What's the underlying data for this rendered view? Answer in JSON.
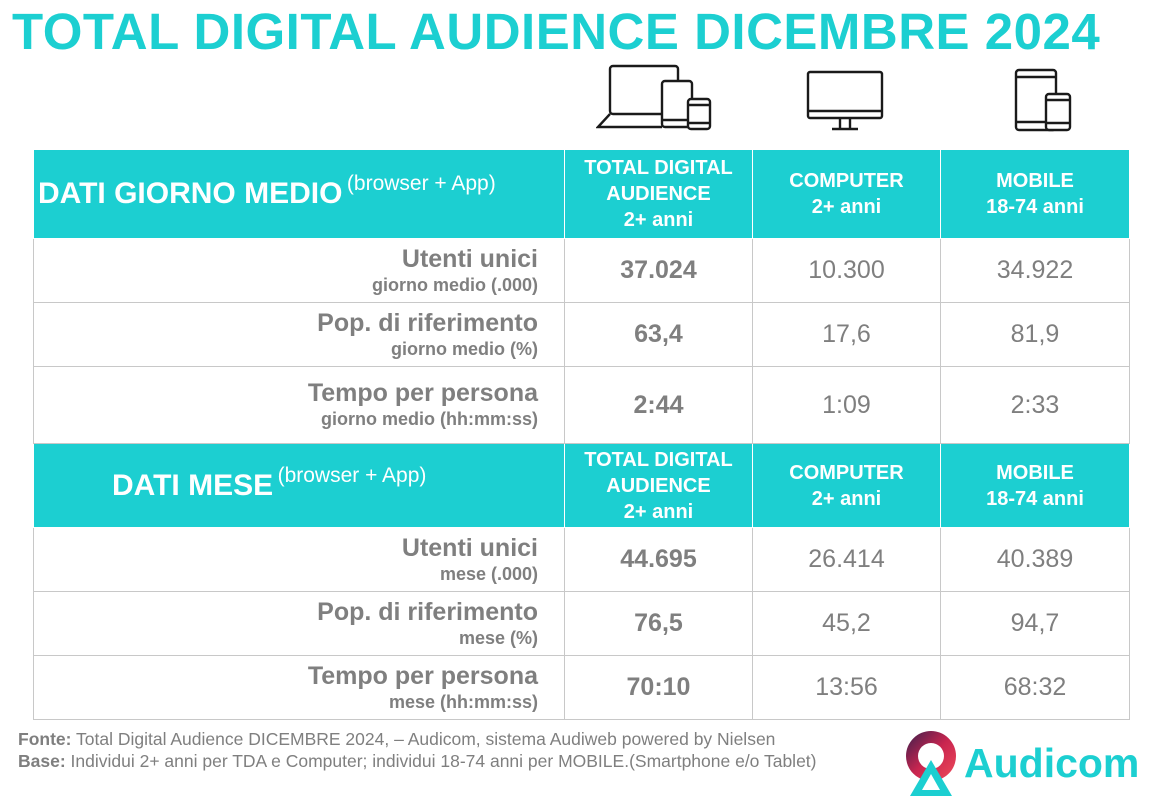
{
  "title": "TOTAL DIGITAL AUDIENCE DICEMBRE 2024",
  "icons": {
    "all_devices": "devices-icon",
    "computer": "desktop-monitor-icon",
    "mobile": "tablet-smartphone-icon"
  },
  "colors": {
    "accent": "#1ccfd1",
    "text": "#7f7f7f",
    "border": "#c8c8c8"
  },
  "columns": {
    "total": [
      "TOTAL DIGITAL",
      "AUDIENCE",
      "2+ anni"
    ],
    "computer": [
      "COMPUTER",
      "2+ anni"
    ],
    "mobile": [
      "MOBILE",
      "18-74 anni"
    ]
  },
  "daily": {
    "title": "DATI GIORNO MEDIO",
    "subtitle": "(browser + App)",
    "rows": [
      {
        "label": "Utenti unici",
        "sublabel": "giorno medio (.000)",
        "total": "37.024",
        "computer": "10.300",
        "mobile": "34.922"
      },
      {
        "label": "Pop. di riferimento",
        "sublabel": "giorno medio (%)",
        "total": "63,4",
        "computer": "17,6",
        "mobile": "81,9"
      },
      {
        "label": "Tempo per persona",
        "sublabel": "giorno medio (hh:mm:ss)",
        "total": "2:44",
        "computer": "1:09",
        "mobile": "2:33"
      }
    ]
  },
  "monthly": {
    "title": "DATI MESE",
    "subtitle": "(browser + App)",
    "rows": [
      {
        "label": "Utenti unici",
        "sublabel": "mese (.000)",
        "total": "44.695",
        "computer": "26.414",
        "mobile": "40.389"
      },
      {
        "label": "Pop. di riferimento",
        "sublabel": "mese (%)",
        "total": "76,5",
        "computer": "45,2",
        "mobile": "94,7"
      },
      {
        "label": "Tempo per persona",
        "sublabel": "mese (hh:mm:ss)",
        "total": "70:10",
        "computer": "13:56",
        "mobile": "68:32"
      }
    ]
  },
  "footer": {
    "source_label": "Fonte:",
    "source_text": " Total Digital Audience DICEMBRE 2024, – Audicom, sistema Audiweb powered by Nielsen",
    "base_label": "Base:",
    "base_text": "  Individui 2+ anni per TDA e Computer; individui 18-74 anni per MOBILE.(Smartphone e/o Tablet)"
  },
  "logo": {
    "name": "Audicom"
  }
}
